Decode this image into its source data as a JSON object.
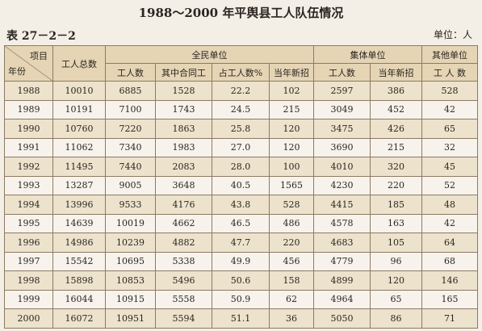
{
  "header": {
    "title": "1988～2000 年平舆县工人队伍情况",
    "table_number": "表 27－2－2",
    "unit": "单位：人"
  },
  "table": {
    "corner": {
      "top": "项目",
      "bottom": "年份"
    },
    "columns": {
      "total": "工人总数",
      "state": {
        "label": "全民单位",
        "sub": [
          "工人数",
          "其中合同工",
          "占工人数%",
          "当年新招"
        ]
      },
      "collective": {
        "label": "集体单位",
        "sub": [
          "工人数",
          "当年新招"
        ]
      },
      "other": {
        "label": "其他单位",
        "sub": "工 人 数"
      }
    },
    "rows": [
      [
        "1988",
        "10010",
        "6885",
        "1528",
        "22.2",
        "102",
        "2597",
        "386",
        "528"
      ],
      [
        "1989",
        "10191",
        "7100",
        "1743",
        "24.5",
        "215",
        "3049",
        "452",
        "42"
      ],
      [
        "1990",
        "10760",
        "7220",
        "1863",
        "25.8",
        "120",
        "3475",
        "426",
        "65"
      ],
      [
        "1991",
        "11062",
        "7340",
        "1983",
        "27.0",
        "120",
        "3690",
        "215",
        "32"
      ],
      [
        "1992",
        "11495",
        "7440",
        "2083",
        "28.0",
        "100",
        "4010",
        "320",
        "45"
      ],
      [
        "1993",
        "13287",
        "9005",
        "3648",
        "40.5",
        "1565",
        "4230",
        "220",
        "52"
      ],
      [
        "1994",
        "13996",
        "9533",
        "4176",
        "43.8",
        "528",
        "4415",
        "185",
        "48"
      ],
      [
        "1995",
        "14639",
        "10019",
        "4662",
        "46.5",
        "486",
        "4578",
        "163",
        "42"
      ],
      [
        "1996",
        "14986",
        "10239",
        "4882",
        "47.7",
        "220",
        "4683",
        "105",
        "64"
      ],
      [
        "1997",
        "15542",
        "10695",
        "5338",
        "49.9",
        "456",
        "4779",
        "96",
        "68"
      ],
      [
        "1998",
        "15898",
        "10853",
        "5496",
        "50.6",
        "158",
        "4899",
        "120",
        "146"
      ],
      [
        "1999",
        "16044",
        "10915",
        "5558",
        "50.9",
        "62",
        "4964",
        "65",
        "165"
      ],
      [
        "2000",
        "16072",
        "10951",
        "5594",
        "51.1",
        "36",
        "5050",
        "86",
        "71"
      ]
    ]
  }
}
